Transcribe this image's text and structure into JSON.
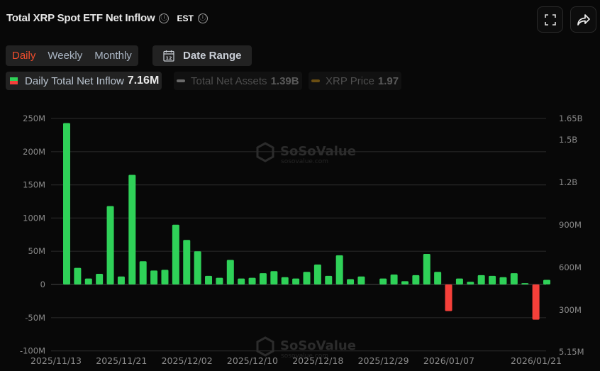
{
  "header": {
    "title": "Total XRP Spot ETF Net Inflow",
    "timezone": "EST",
    "info_icon": "ⓘ",
    "fullscreen_icon": "expand-icon",
    "share_icon": "share-icon"
  },
  "period_tabs": [
    {
      "label": "Daily",
      "active": true
    },
    {
      "label": "Weekly",
      "active": false
    },
    {
      "label": "Monthly",
      "active": false
    }
  ],
  "date_range": {
    "label": "Date Range",
    "icon_day": "12"
  },
  "legend": [
    {
      "label": "Daily Total Net Inflow",
      "value": "7.16M",
      "active": true
    },
    {
      "label": "Total Net Assets",
      "value": "1.39B",
      "active": false,
      "color": "#8a8a8a"
    },
    {
      "label": "XRP Price",
      "value": "1.97",
      "active": false,
      "color": "#8a6a1a"
    }
  ],
  "colors": {
    "positive": "#2fd158",
    "negative": "#f5403a",
    "accent": "#f04d2d",
    "background": "#080808"
  },
  "watermark": {
    "brand": "SoSoValue",
    "url": "sosovalue.com"
  },
  "chart_data": {
    "type": "bar",
    "title": "Total XRP Spot ETF Net Inflow",
    "series": [
      {
        "name": "Daily Total Net Inflow",
        "unit": "USD millions",
        "values": [
          243,
          25,
          9,
          16,
          118,
          12,
          165,
          35,
          21,
          22,
          90,
          67,
          50,
          13,
          10,
          37,
          9,
          10,
          17,
          20,
          11,
          9,
          19,
          30,
          13,
          44,
          8,
          12,
          0,
          9,
          15,
          5,
          14,
          46,
          19,
          -40,
          9,
          4,
          14,
          13,
          11,
          17,
          2,
          -53,
          7
        ]
      }
    ],
    "x_tick_labels": [
      "2025/11/13",
      "2025/11/21",
      "2025/12/02",
      "2025/12/10",
      "2025/12/18",
      "2025/12/29",
      "2026/01/07",
      "2026/01/21"
    ],
    "x_tick_bar_index": [
      0,
      6,
      12,
      18,
      24,
      30,
      36,
      44
    ],
    "y_left_ticks": [
      "250M",
      "200M",
      "150M",
      "100M",
      "50M",
      "0",
      "-50M",
      "-100M"
    ],
    "y_left_values": [
      250,
      200,
      150,
      100,
      50,
      0,
      -50,
      -100
    ],
    "y_right_ticks": [
      "1.65B",
      "1.5B",
      "1.2B",
      "900M",
      "600M",
      "300M",
      "5.15M"
    ],
    "ylim": [
      -100,
      250
    ],
    "xlabel": "",
    "ylabel": "",
    "grid": true,
    "legend_position": "top-left"
  }
}
